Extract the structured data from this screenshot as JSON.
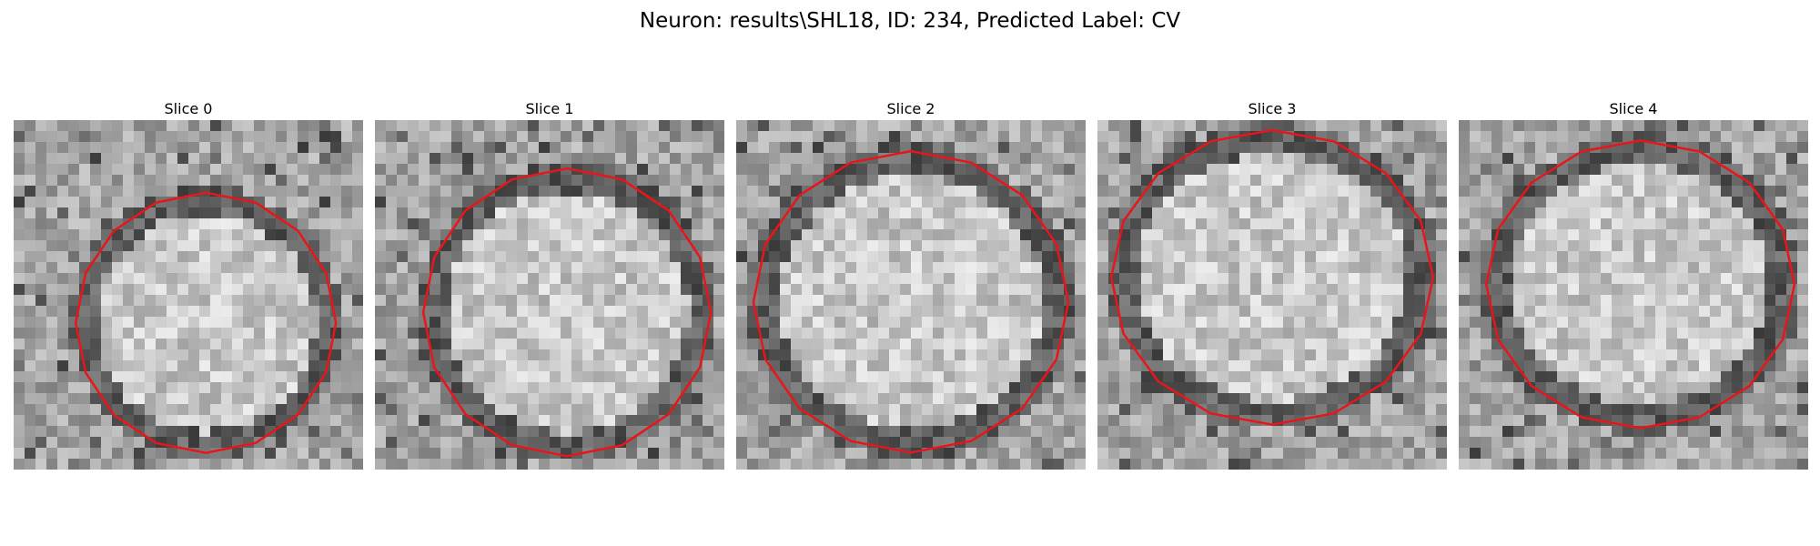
{
  "figure": {
    "title": "Neuron: results\\SHL18, ID: 234, Predicted Label: CV"
  },
  "panels": [
    {
      "label": "Slice 0"
    },
    {
      "label": "Slice 1"
    },
    {
      "label": "Slice 2"
    },
    {
      "label": "Slice 3"
    },
    {
      "label": "Slice 4"
    }
  ],
  "colors": {
    "contour": "#e8151b",
    "background": "#ffffff"
  }
}
